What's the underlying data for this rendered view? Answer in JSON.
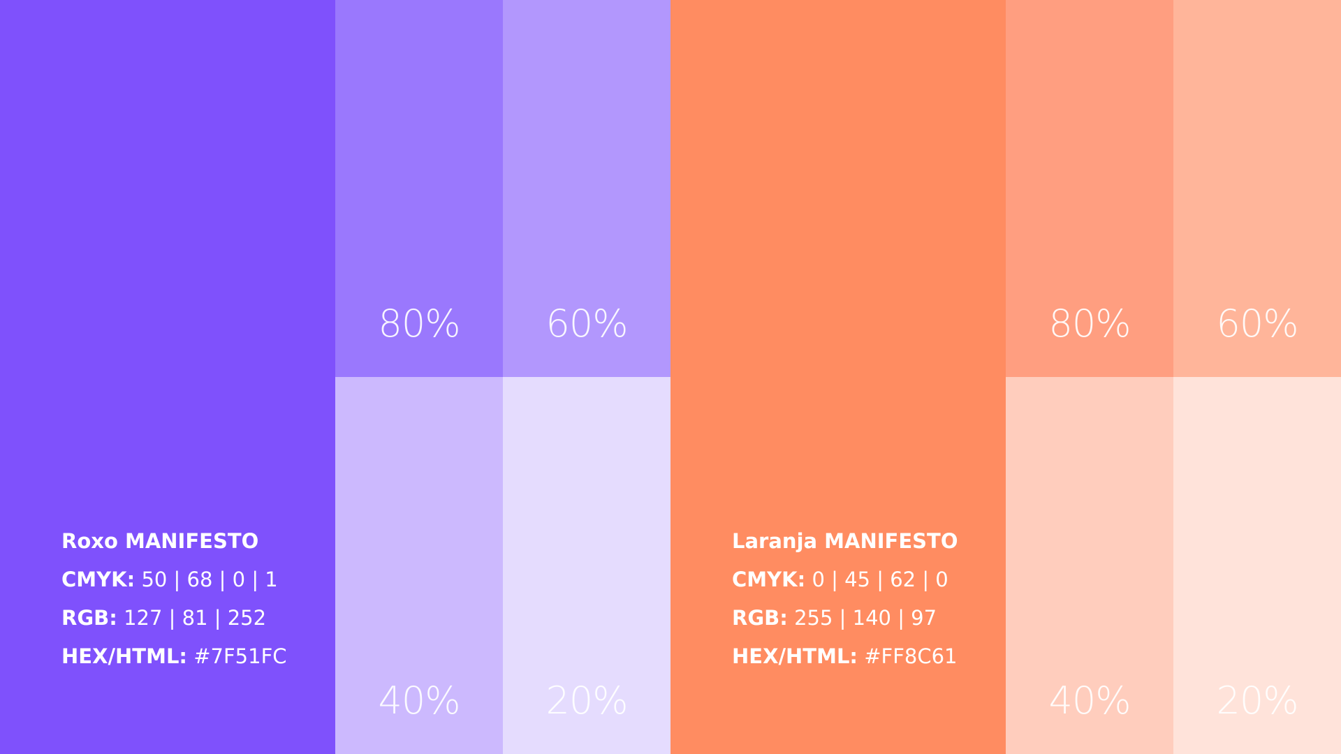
{
  "palettes": [
    {
      "name": "Roxo MANIFESTO",
      "color": "#7F51FC",
      "specs": [
        {
          "label": "CMYK:",
          "value": "50 | 68 | 0 | 1"
        },
        {
          "label": "RGB:",
          "value": "127 | 81 | 252"
        },
        {
          "label": "HEX/HTML:",
          "value": "#7F51FC"
        }
      ],
      "tints": [
        {
          "label": "80%",
          "color": "#9A78FD"
        },
        {
          "label": "60%",
          "color": "#B297FD"
        },
        {
          "label": "40%",
          "color": "#CCB9FE"
        },
        {
          "label": "20%",
          "color": "#E5DCFE"
        }
      ]
    },
    {
      "name": "Laranja MANIFESTO",
      "color": "#FF8C61",
      "specs": [
        {
          "label": "CMYK:",
          "value": "0 | 45 | 62 | 0"
        },
        {
          "label": "RGB:",
          "value": "255 | 140 | 97"
        },
        {
          "label": "HEX/HTML:",
          "value": "#FF8C61"
        }
      ],
      "tints": [
        {
          "label": "80%",
          "color": "#FF9E80"
        },
        {
          "label": "60%",
          "color": "#FFB59A"
        },
        {
          "label": "40%",
          "color": "#FFCDBD"
        },
        {
          "label": "20%",
          "color": "#FFE3DA"
        }
      ]
    }
  ]
}
